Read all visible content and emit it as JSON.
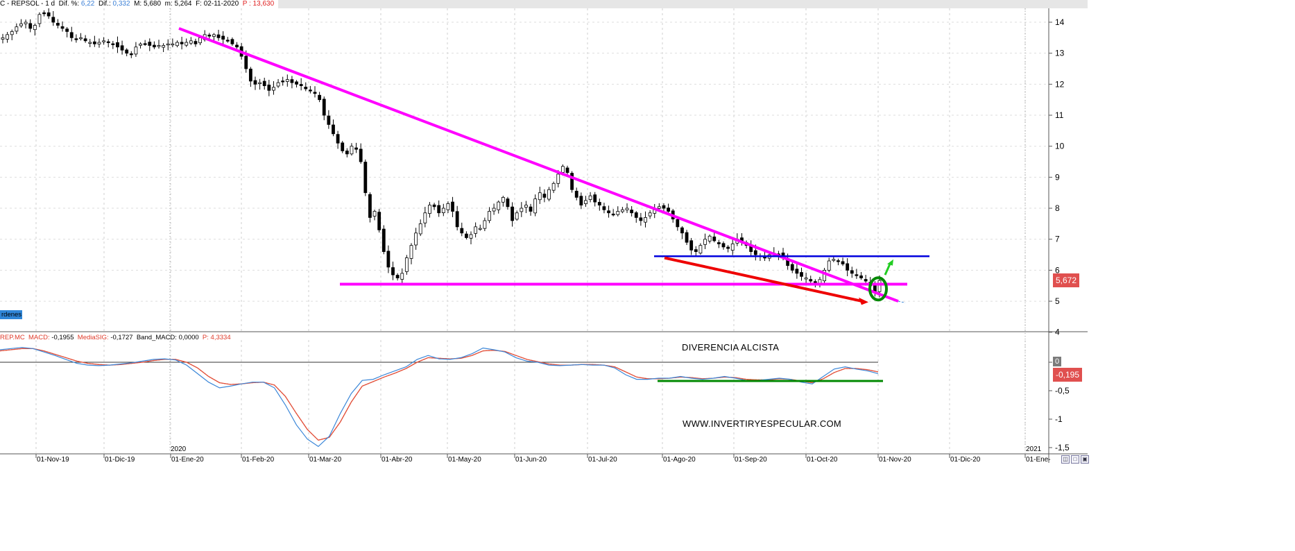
{
  "header": {
    "symbol": "C - REPSOL - 1 d",
    "dif_pct_label": "Dif. %:",
    "dif_pct": "6,22",
    "dif_label": "Dif.:",
    "dif": "0,332",
    "max_label": "M:",
    "max": "5,680",
    "min_label": "m:",
    "min": "5,264",
    "date_label": "F:",
    "date": "02-11-2020",
    "p_label": "P :",
    "p": "13,630"
  },
  "ordenes_label": "rdenes",
  "macd_header": {
    "name": "REP.MC",
    "macd_label": "MACD:",
    "macd": "-0,1955",
    "sig_label": "MediaSIG:",
    "sig": "-0,1727",
    "band_label": "Band_MACD:",
    "band": "0,0000",
    "p_label": "P:",
    "p": "4,3334"
  },
  "annotations": {
    "divergence": "DIVERENCIA ALCISTA",
    "website": "WWW.INVERTIRYESPECULAR.COM"
  },
  "price_tag": "5,672",
  "macd_tag": "-0,195",
  "macd_zero_tag": "0",
  "year_labels": [
    "2020",
    "2021"
  ],
  "colors": {
    "trendline": "#ff00ff",
    "support": "#ff00ff",
    "resistance": "#0000dd",
    "divergence_price": "#ee0000",
    "divergence_macd": "#008800",
    "macd_line": "#3a86d8",
    "signal_line": "#e2503a",
    "circle": "#008800",
    "arrow_up": "#22cc22",
    "price_tag_bg": "#e0504f",
    "macd_tag_bg": "#e0504f"
  },
  "chart_data": [
    {
      "type": "candlestick",
      "title": "REPSOL - 1 d",
      "ylim": [
        4,
        14.4
      ],
      "y_ticks": [
        4,
        5,
        6,
        7,
        8,
        9,
        10,
        11,
        12,
        13,
        14
      ],
      "x_ticks": [
        "01-Nov-19",
        "01-Dic-19",
        "01-Ene-20",
        "01-Feb-20",
        "01-Mar-20",
        "01-Abr-20",
        "01-May-20",
        "01-Jun-20",
        "01-Jul-20",
        "01-Ago-20",
        "01-Sep-20",
        "01-Oct-20",
        "01-Nov-20",
        "01-Dic-20",
        "01-Ene-"
      ],
      "series": [
        {
          "values": [
            13.5,
            13.6,
            13.7,
            13.85,
            13.95,
            14.0,
            13.8,
            13.9,
            14.25,
            14.3,
            14.2,
            14.0,
            13.9,
            13.8,
            13.7,
            13.5,
            13.45,
            13.5,
            13.4,
            13.35,
            13.3,
            13.35,
            13.4,
            13.35,
            13.3,
            13.2,
            13.1,
            13.0,
            12.95,
            13.2,
            13.3,
            13.3,
            13.25,
            13.2,
            13.25,
            13.25,
            13.3,
            13.3,
            13.35,
            13.3,
            13.35,
            13.4,
            13.3,
            13.5,
            13.6,
            13.55,
            13.6,
            13.5,
            13.45,
            13.4,
            13.3,
            13.2,
            12.9,
            12.5,
            12.1,
            12.0,
            12.05,
            11.95,
            11.8,
            11.9,
            12.05,
            12.1,
            12.15,
            12.05,
            12.0,
            11.95,
            11.85,
            11.8,
            11.7,
            11.5,
            11.0,
            10.7,
            10.4,
            10.1,
            9.85,
            9.75,
            10.0,
            9.9,
            9.5,
            8.5,
            7.7,
            7.9,
            7.3,
            6.6,
            6.1,
            5.85,
            5.75,
            5.9,
            6.4,
            6.8,
            7.2,
            7.5,
            7.85,
            8.1,
            8.05,
            7.85,
            8.0,
            8.15,
            7.9,
            7.4,
            7.2,
            7.05,
            7.15,
            7.4,
            7.35,
            7.6,
            7.9,
            8.0,
            8.2,
            8.35,
            8.05,
            7.6,
            7.85,
            8.0,
            8.1,
            7.9,
            8.3,
            8.5,
            8.35,
            8.6,
            8.8,
            9.1,
            9.35,
            9.15,
            8.6,
            8.35,
            8.1,
            8.25,
            8.4,
            8.2,
            8.1,
            7.95,
            7.85,
            7.8,
            7.9,
            7.95,
            8.0,
            7.85,
            7.7,
            7.6,
            7.7,
            7.85,
            7.95,
            8.05,
            8.0,
            7.9,
            7.65,
            7.4,
            7.2,
            6.9,
            6.65,
            6.6,
            6.8,
            7.0,
            7.1,
            6.95,
            6.85,
            6.75,
            6.7,
            6.85,
            7.0,
            6.95,
            6.8,
            6.6,
            6.5,
            6.45,
            6.4,
            6.5,
            6.55,
            6.5,
            6.4,
            6.15,
            6.0,
            5.9,
            5.8,
            5.75,
            5.65,
            5.55,
            5.7,
            6.0,
            6.3,
            6.35,
            6.3,
            6.2,
            6.0,
            5.9,
            5.85,
            5.75,
            5.65,
            5.5,
            5.3,
            5.67
          ]
        }
      ],
      "last_price": 5.672
    },
    {
      "type": "line",
      "title": "REP.MC MACD",
      "ylim": [
        -1.6,
        0.3
      ],
      "y_ticks": [
        0,
        -0.5,
        -1,
        -1.5
      ],
      "series": [
        {
          "name": "MACD",
          "values": [
            0.22,
            0.24,
            0.26,
            0.24,
            0.18,
            0.12,
            0.05,
            -0.02,
            -0.05,
            -0.06,
            -0.05,
            -0.03,
            -0.01,
            0.02,
            0.05,
            0.06,
            0.04,
            -0.05,
            -0.2,
            -0.35,
            -0.45,
            -0.42,
            -0.38,
            -0.35,
            -0.35,
            -0.45,
            -0.75,
            -1.1,
            -1.35,
            -1.48,
            -1.3,
            -0.9,
            -0.55,
            -0.32,
            -0.3,
            -0.22,
            -0.15,
            -0.08,
            0.05,
            0.12,
            0.06,
            0.05,
            0.08,
            0.15,
            0.25,
            0.22,
            0.18,
            0.08,
            0.02,
            0.0,
            -0.05,
            -0.06,
            -0.05,
            -0.04,
            -0.05,
            -0.05,
            -0.1,
            -0.22,
            -0.3,
            -0.3,
            -0.28,
            -0.28,
            -0.25,
            -0.28,
            -0.3,
            -0.28,
            -0.25,
            -0.28,
            -0.32,
            -0.32,
            -0.3,
            -0.28,
            -0.3,
            -0.35,
            -0.38,
            -0.25,
            -0.12,
            -0.08,
            -0.12,
            -0.15,
            -0.2
          ]
        },
        {
          "name": "MediaSIG",
          "values": [
            0.2,
            0.22,
            0.24,
            0.24,
            0.2,
            0.14,
            0.08,
            0.02,
            -0.02,
            -0.04,
            -0.05,
            -0.04,
            -0.02,
            0.0,
            0.03,
            0.05,
            0.05,
            0.0,
            -0.1,
            -0.25,
            -0.36,
            -0.39,
            -0.38,
            -0.36,
            -0.35,
            -0.4,
            -0.6,
            -0.9,
            -1.18,
            -1.37,
            -1.32,
            -1.05,
            -0.7,
            -0.42,
            -0.34,
            -0.26,
            -0.19,
            -0.11,
            0.0,
            0.08,
            0.07,
            0.06,
            0.07,
            0.12,
            0.2,
            0.21,
            0.19,
            0.12,
            0.05,
            0.01,
            -0.03,
            -0.05,
            -0.05,
            -0.04,
            -0.04,
            -0.05,
            -0.08,
            -0.17,
            -0.26,
            -0.29,
            -0.29,
            -0.28,
            -0.26,
            -0.27,
            -0.29,
            -0.28,
            -0.26,
            -0.27,
            -0.3,
            -0.31,
            -0.31,
            -0.29,
            -0.3,
            -0.33,
            -0.36,
            -0.29,
            -0.18,
            -0.11,
            -0.11,
            -0.13,
            -0.17
          ]
        }
      ]
    }
  ]
}
